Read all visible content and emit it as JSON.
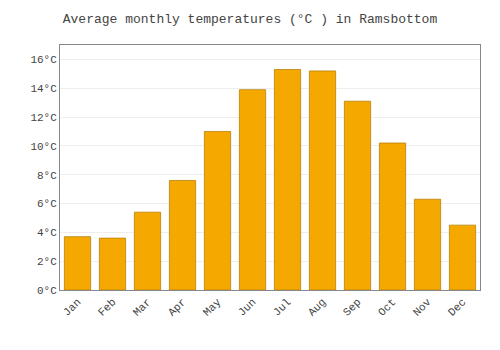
{
  "chart_data": {
    "type": "bar",
    "title": "Average monthly temperatures (°C ) in Ramsbottom",
    "categories": [
      "Jan",
      "Feb",
      "Mar",
      "Apr",
      "May",
      "Jun",
      "Jul",
      "Aug",
      "Sep",
      "Oct",
      "Nov",
      "Dec"
    ],
    "values": [
      3.7,
      3.6,
      5.4,
      7.6,
      11.0,
      13.9,
      15.3,
      15.2,
      13.1,
      10.2,
      6.3,
      4.5
    ],
    "color": "#F5A800",
    "ylim": [
      0,
      17.0
    ],
    "yticks": [
      {
        "value": 0,
        "label": "0°C"
      },
      {
        "value": 2,
        "label": "2°C"
      },
      {
        "value": 4,
        "label": "4°C"
      },
      {
        "value": 6,
        "label": "6°C"
      },
      {
        "value": 8,
        "label": "8°C"
      },
      {
        "value": 10,
        "label": "10°C"
      },
      {
        "value": 12,
        "label": "12°C"
      },
      {
        "value": 14,
        "label": "14°C"
      },
      {
        "value": 16,
        "label": "16°C"
      }
    ],
    "grid": true
  }
}
